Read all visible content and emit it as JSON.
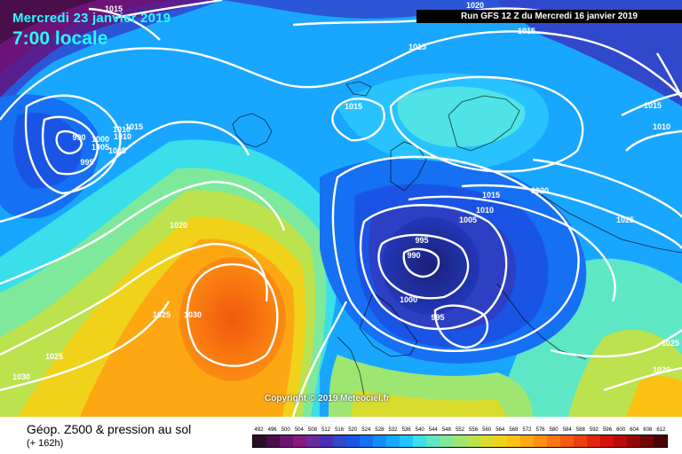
{
  "header": {
    "date": "Mercredi 23 janvier 2019",
    "time": "7:00 locale",
    "run": "Run GFS 12 Z du Mercredi 16 janvier 2019"
  },
  "copyright": "Copyright © 2019 Meteociel.fr",
  "legend": {
    "title": "Géop. Z500 & pression au sol",
    "subtitle": "(+ 162h)",
    "values": [
      "492",
      "496",
      "500",
      "504",
      "508",
      "512",
      "516",
      "520",
      "524",
      "528",
      "532",
      "536",
      "540",
      "544",
      "548",
      "552",
      "556",
      "560",
      "564",
      "568",
      "572",
      "576",
      "580",
      "584",
      "588",
      "592",
      "596",
      "600",
      "604",
      "608",
      "612"
    ],
    "colors": [
      "#2a0f2a",
      "#4a0f4a",
      "#6a146e",
      "#87197f",
      "#6a2e9b",
      "#4b2eb5",
      "#3048cb",
      "#1a54e4",
      "#1570f3",
      "#138dfc",
      "#15aaff",
      "#1fc6ff",
      "#3adfe9",
      "#5de7c4",
      "#7ee99a",
      "#9ee672",
      "#bce24d",
      "#d9dc2d",
      "#f0d21b",
      "#fcc015",
      "#fda813",
      "#fd8f12",
      "#fb7511",
      "#f65a10",
      "#ee3f10",
      "#e4250e",
      "#d5120c",
      "#b90b0b",
      "#950808",
      "#720606",
      "#4a0303"
    ]
  },
  "isobar_labels": [
    "1020",
    "1015",
    "1015",
    "1015",
    "1015",
    "1010",
    "990",
    "1005",
    "1005",
    "995",
    "1000",
    "1010",
    "1015",
    "1020",
    "990",
    "995",
    "995",
    "1000",
    "1005",
    "1010",
    "1015",
    "1020",
    "1025",
    "1030",
    "1025",
    "1030",
    "1025",
    "1020",
    "1025",
    "1015",
    "1010"
  ]
}
